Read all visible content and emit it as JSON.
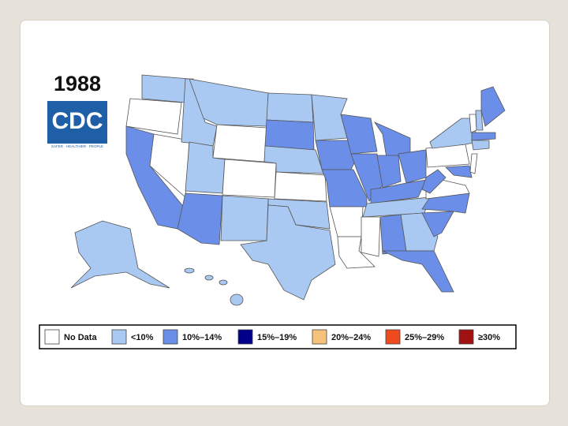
{
  "title": "1988",
  "logo": {
    "text": "CDC",
    "tagline": "SAFER · HEALTHIER · PEOPLE"
  },
  "legend": [
    {
      "label": "No Data",
      "color": "#ffffff"
    },
    {
      "label": "<10%",
      "color": "#aac9f2"
    },
    {
      "label": "10%–14%",
      "color": "#6b8ee8"
    },
    {
      "label": "15%–19%",
      "color": "#00008b"
    },
    {
      "label": "20%–24%",
      "color": "#f7c27c"
    },
    {
      "label": "25%–29%",
      "color": "#ee4a1e"
    },
    {
      "label": "≥30%",
      "color": "#a01212"
    }
  ]
}
